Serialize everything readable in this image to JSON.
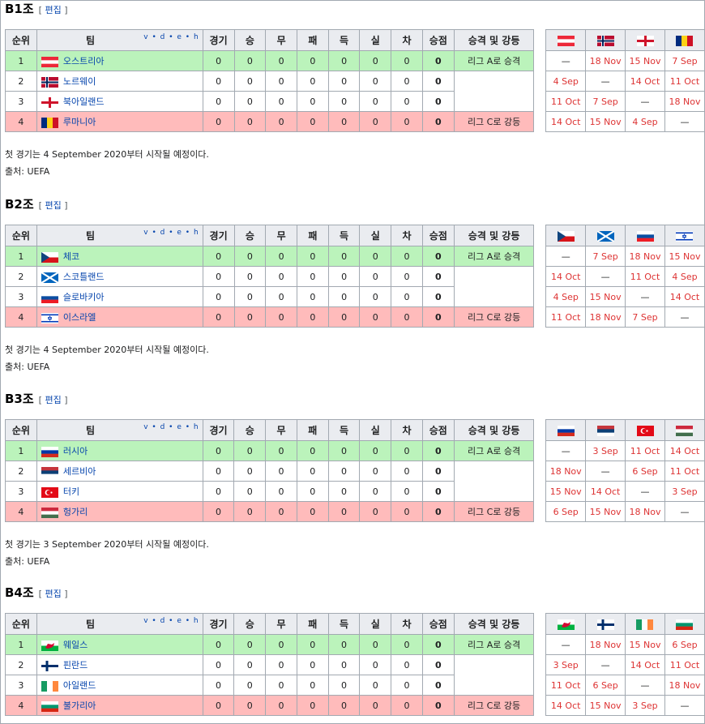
{
  "groups": [
    {
      "title": "B1조",
      "edit": "편집",
      "headers": [
        "순위",
        "팀",
        "경기",
        "승",
        "무",
        "패",
        "득",
        "실",
        "차",
        "승점",
        "승격 및 강등"
      ],
      "vde": "v • d • e • h",
      "flags": [
        {
          "name": "austria-flag",
          "colors": [
            "#ed2939",
            "#ffffff",
            "#ed2939"
          ],
          "dir": "h"
        },
        {
          "name": "norway-flag",
          "colors": [
            "#ba0c2f",
            "#ffffff",
            "#00205b"
          ],
          "dir": "nordic"
        },
        {
          "name": "northern-ireland-flag",
          "colors": [
            "#ffffff",
            "#cf142b"
          ],
          "dir": "cross"
        },
        {
          "name": "romania-flag",
          "colors": [
            "#002b7f",
            "#fcd116",
            "#ce1126"
          ],
          "dir": "v"
        }
      ],
      "rows": [
        {
          "pos": "1",
          "team": "오스트리아",
          "p": "0",
          "w": "0",
          "d": "0",
          "l": "0",
          "gf": "0",
          "ga": "0",
          "gd": "0",
          "pts": "0",
          "qual": "리그 A로 승격",
          "res": [
            "—",
            "18 Nov",
            "15 Nov",
            "7 Sep"
          ]
        },
        {
          "pos": "2",
          "team": "노르웨이",
          "p": "0",
          "w": "0",
          "d": "0",
          "l": "0",
          "gf": "0",
          "ga": "0",
          "gd": "0",
          "pts": "0",
          "qual": "",
          "res": [
            "4 Sep",
            "—",
            "14 Oct",
            "11 Oct"
          ]
        },
        {
          "pos": "3",
          "team": "북아일랜드",
          "p": "0",
          "w": "0",
          "d": "0",
          "l": "0",
          "gf": "0",
          "ga": "0",
          "gd": "0",
          "pts": "0",
          "qual": "",
          "res": [
            "11 Oct",
            "7 Sep",
            "—",
            "18 Nov"
          ]
        },
        {
          "pos": "4",
          "team": "루마니아",
          "p": "0",
          "w": "0",
          "d": "0",
          "l": "0",
          "gf": "0",
          "ga": "0",
          "gd": "0",
          "pts": "0",
          "qual": "리그 C로 강등",
          "res": [
            "14 Oct",
            "15 Nov",
            "4 Sep",
            "—"
          ]
        }
      ],
      "note1": "첫 경기는 4 September 2020부터 시작될 예정이다.",
      "note2": "출처: UEFA"
    },
    {
      "title": "B2조",
      "edit": "편집",
      "headers": [
        "순위",
        "팀",
        "경기",
        "승",
        "무",
        "패",
        "득",
        "실",
        "차",
        "승점",
        "승격 및 강등"
      ],
      "vde": "v • d • e • h",
      "flags": [
        {
          "name": "czech-flag",
          "colors": [
            "#ffffff",
            "#d7141a",
            "#11457e"
          ],
          "dir": "czech"
        },
        {
          "name": "scotland-flag",
          "colors": [
            "#0065bd",
            "#ffffff"
          ],
          "dir": "saltire"
        },
        {
          "name": "slovakia-flag",
          "colors": [
            "#ffffff",
            "#0b4ea2",
            "#ee1c25"
          ],
          "dir": "h"
        },
        {
          "name": "israel-flag",
          "colors": [
            "#ffffff",
            "#0038b8",
            "#ffffff"
          ],
          "dir": "israel"
        }
      ],
      "rows": [
        {
          "pos": "1",
          "team": "체코",
          "p": "0",
          "w": "0",
          "d": "0",
          "l": "0",
          "gf": "0",
          "ga": "0",
          "gd": "0",
          "pts": "0",
          "qual": "리그 A로 승격",
          "res": [
            "—",
            "7 Sep",
            "18 Nov",
            "15 Nov"
          ]
        },
        {
          "pos": "2",
          "team": "스코틀랜드",
          "p": "0",
          "w": "0",
          "d": "0",
          "l": "0",
          "gf": "0",
          "ga": "0",
          "gd": "0",
          "pts": "0",
          "qual": "",
          "res": [
            "14 Oct",
            "—",
            "11 Oct",
            "4 Sep"
          ]
        },
        {
          "pos": "3",
          "team": "슬로바키아",
          "p": "0",
          "w": "0",
          "d": "0",
          "l": "0",
          "gf": "0",
          "ga": "0",
          "gd": "0",
          "pts": "0",
          "qual": "",
          "res": [
            "4 Sep",
            "15 Nov",
            "—",
            "14 Oct"
          ]
        },
        {
          "pos": "4",
          "team": "이스라엘",
          "p": "0",
          "w": "0",
          "d": "0",
          "l": "0",
          "gf": "0",
          "ga": "0",
          "gd": "0",
          "pts": "0",
          "qual": "리그 C로 강등",
          "res": [
            "11 Oct",
            "18 Nov",
            "7 Sep",
            "—"
          ]
        }
      ],
      "note1": "첫 경기는 4 September 2020부터 시작될 예정이다.",
      "note2": "출처: UEFA"
    },
    {
      "title": "B3조",
      "edit": "편집",
      "headers": [
        "순위",
        "팀",
        "경기",
        "승",
        "무",
        "패",
        "득",
        "실",
        "차",
        "승점",
        "승격 및 강등"
      ],
      "vde": "v • d • e • h",
      "flags": [
        {
          "name": "russia-flag",
          "colors": [
            "#ffffff",
            "#0039a6",
            "#d52b1e"
          ],
          "dir": "h"
        },
        {
          "name": "serbia-flag",
          "colors": [
            "#c6363c",
            "#0c4076",
            "#ffffff"
          ],
          "dir": "h"
        },
        {
          "name": "turkey-flag",
          "colors": [
            "#e30a17",
            "#ffffff"
          ],
          "dir": "turkey"
        },
        {
          "name": "hungary-flag",
          "colors": [
            "#cd2a3e",
            "#ffffff",
            "#436f4d"
          ],
          "dir": "h"
        }
      ],
      "rows": [
        {
          "pos": "1",
          "team": "러시아",
          "p": "0",
          "w": "0",
          "d": "0",
          "l": "0",
          "gf": "0",
          "ga": "0",
          "gd": "0",
          "pts": "0",
          "qual": "리그 A로 승격",
          "res": [
            "—",
            "3 Sep",
            "11 Oct",
            "14 Oct"
          ]
        },
        {
          "pos": "2",
          "team": "세르비아",
          "p": "0",
          "w": "0",
          "d": "0",
          "l": "0",
          "gf": "0",
          "ga": "0",
          "gd": "0",
          "pts": "0",
          "qual": "",
          "res": [
            "18 Nov",
            "—",
            "6 Sep",
            "11 Oct"
          ]
        },
        {
          "pos": "3",
          "team": "터키",
          "p": "0",
          "w": "0",
          "d": "0",
          "l": "0",
          "gf": "0",
          "ga": "0",
          "gd": "0",
          "pts": "0",
          "qual": "",
          "res": [
            "15 Nov",
            "14 Oct",
            "—",
            "3 Sep"
          ]
        },
        {
          "pos": "4",
          "team": "헝가리",
          "p": "0",
          "w": "0",
          "d": "0",
          "l": "0",
          "gf": "0",
          "ga": "0",
          "gd": "0",
          "pts": "0",
          "qual": "리그 C로 강등",
          "res": [
            "6 Sep",
            "15 Nov",
            "18 Nov",
            "—"
          ]
        }
      ],
      "note1": "첫 경기는 3 September 2020부터 시작될 예정이다.",
      "note2": "출처: UEFA"
    },
    {
      "title": "B4조",
      "edit": "편집",
      "headers": [
        "순위",
        "팀",
        "경기",
        "승",
        "무",
        "패",
        "득",
        "실",
        "차",
        "승점",
        "승격 및 강등"
      ],
      "vde": "v • d • e • h",
      "flags": [
        {
          "name": "wales-flag",
          "colors": [
            "#ffffff",
            "#00b140",
            "#d30731"
          ],
          "dir": "wales"
        },
        {
          "name": "finland-flag",
          "colors": [
            "#ffffff",
            "#002f6c"
          ],
          "dir": "nordic2"
        },
        {
          "name": "ireland-flag",
          "colors": [
            "#169b62",
            "#ffffff",
            "#ff883e"
          ],
          "dir": "v"
        },
        {
          "name": "bulgaria-flag",
          "colors": [
            "#ffffff",
            "#00966e",
            "#d62612"
          ],
          "dir": "h"
        }
      ],
      "rows": [
        {
          "pos": "1",
          "team": "웨일스",
          "p": "0",
          "w": "0",
          "d": "0",
          "l": "0",
          "gf": "0",
          "ga": "0",
          "gd": "0",
          "pts": "0",
          "qual": "리그 A로 승격",
          "res": [
            "—",
            "18 Nov",
            "15 Nov",
            "6 Sep"
          ]
        },
        {
          "pos": "2",
          "team": "핀란드",
          "p": "0",
          "w": "0",
          "d": "0",
          "l": "0",
          "gf": "0",
          "ga": "0",
          "gd": "0",
          "pts": "0",
          "qual": "",
          "res": [
            "3 Sep",
            "—",
            "14 Oct",
            "11 Oct"
          ]
        },
        {
          "pos": "3",
          "team": "아일랜드",
          "p": "0",
          "w": "0",
          "d": "0",
          "l": "0",
          "gf": "0",
          "ga": "0",
          "gd": "0",
          "pts": "0",
          "qual": "",
          "res": [
            "11 Oct",
            "6 Sep",
            "—",
            "18 Nov"
          ]
        },
        {
          "pos": "4",
          "team": "불가리아",
          "p": "0",
          "w": "0",
          "d": "0",
          "l": "0",
          "gf": "0",
          "ga": "0",
          "gd": "0",
          "pts": "0",
          "qual": "리그 C로 강등",
          "res": [
            "14 Oct",
            "15 Nov",
            "3 Sep",
            "—"
          ]
        }
      ],
      "note1": "",
      "note2": ""
    }
  ]
}
